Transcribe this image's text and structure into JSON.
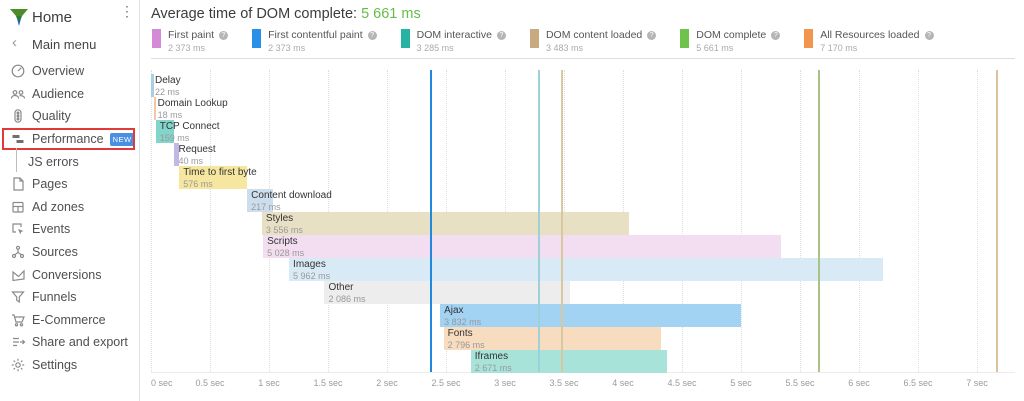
{
  "sidebar": {
    "home_label": "Home",
    "back_label": "Main menu",
    "items": [
      {
        "label": "Overview"
      },
      {
        "label": "Audience"
      },
      {
        "label": "Quality"
      },
      {
        "label": "Performance",
        "badge": "NEW",
        "highlighted": true
      },
      {
        "label": "JS errors",
        "child": true
      },
      {
        "label": "Pages"
      },
      {
        "label": "Ad zones"
      },
      {
        "label": "Events"
      },
      {
        "label": "Sources"
      },
      {
        "label": "Conversions"
      },
      {
        "label": "Funnels"
      },
      {
        "label": "E-Commerce"
      },
      {
        "label": "Share and export"
      },
      {
        "label": "Settings"
      }
    ]
  },
  "header": {
    "title_prefix": "Average time of DOM complete: ",
    "title_value": "5 661 ms"
  },
  "chart_data": {
    "type": "waterfall-timeline",
    "title": "Average time of DOM complete: 5 661 ms",
    "x_unit": "sec",
    "x_range_sec": [
      0,
      7.3
    ],
    "grid": "dotted-vertical-every-0.5s",
    "legend_position": "top",
    "x_ticks": [
      "0 sec",
      "0.5 sec",
      "1 sec",
      "1.5 sec",
      "2 sec",
      "2.5 sec",
      "3 sec",
      "3.5 sec",
      "4 sec",
      "4.5 sec",
      "5 sec",
      "5.5 sec",
      "6 sec",
      "6.5 sec",
      "7 sec"
    ],
    "legend": [
      {
        "label": "First paint",
        "value": "2 373 ms",
        "time_ms": 2373,
        "color": "#d58ad8"
      },
      {
        "label": "First contentful paint",
        "value": "2 373 ms",
        "time_ms": 2373,
        "color": "#2b90e8"
      },
      {
        "label": "DOM interactive",
        "value": "3 285 ms",
        "time_ms": 3285,
        "color": "#26b3a4"
      },
      {
        "label": "DOM content loaded",
        "value": "3 483 ms",
        "time_ms": 3483,
        "color": "#c7ab7e"
      },
      {
        "label": "DOM complete",
        "value": "5 661 ms",
        "time_ms": 5661,
        "color": "#6fc24c"
      },
      {
        "label": "All Resources loaded",
        "value": "7 170 ms",
        "time_ms": 7170,
        "color": "#f2954f"
      }
    ],
    "markers": [
      {
        "name": "first-paint",
        "time_s": 2.373,
        "color": "#da9fe0"
      },
      {
        "name": "first-contentful-paint",
        "time_s": 2.373,
        "color": "#2188e0"
      },
      {
        "name": "dom-interactive",
        "time_s": 3.285,
        "color": "#9fd0d8"
      },
      {
        "name": "dom-content-loaded",
        "time_s": 3.483,
        "color": "#d9c79e"
      },
      {
        "name": "dom-complete",
        "time_s": 5.661,
        "color": "#a8c287"
      },
      {
        "name": "all-resources-loaded",
        "time_s": 7.17,
        "color": "#ddc19e"
      }
    ],
    "bars": [
      {
        "label": "Delay",
        "value": "22 ms",
        "duration_ms": 22,
        "start_s": 0.0,
        "end_s": 0.022,
        "color": "#a9cfe5"
      },
      {
        "label": "Domain Lookup",
        "value": "18 ms",
        "duration_ms": 18,
        "start_s": 0.022,
        "end_s": 0.04,
        "color": "#f3c6a5"
      },
      {
        "label": "TCP Connect",
        "value": "159 ms",
        "duration_ms": 159,
        "start_s": 0.04,
        "end_s": 0.199,
        "color": "#83d4cb"
      },
      {
        "label": "Request",
        "value": "40 ms",
        "duration_ms": 40,
        "start_s": 0.199,
        "end_s": 0.239,
        "color": "#c3b7e6"
      },
      {
        "label": "Time to first byte",
        "value": "576 ms",
        "duration_ms": 576,
        "start_s": 0.239,
        "end_s": 0.815,
        "color": "#f6e7a0"
      },
      {
        "label": "Content download",
        "value": "217 ms",
        "duration_ms": 217,
        "start_s": 0.815,
        "end_s": 1.032,
        "color": "#ccdeed"
      },
      {
        "label": "Styles",
        "value": "3 556 ms",
        "duration_ms": 3556,
        "start_s": 0.94,
        "end_s": 4.05,
        "color": "#e8e0c5"
      },
      {
        "label": "Scripts",
        "value": "5 028 ms",
        "duration_ms": 5028,
        "start_s": 0.95,
        "end_s": 5.34,
        "color": "#f3def1"
      },
      {
        "label": "Images",
        "value": "5 962 ms",
        "duration_ms": 5962,
        "start_s": 1.17,
        "end_s": 6.2,
        "color": "#d9eaf7"
      },
      {
        "label": "Other",
        "value": "2 086 ms",
        "duration_ms": 2086,
        "start_s": 1.47,
        "end_s": 3.55,
        "color": "#ededed"
      },
      {
        "label": "Ajax",
        "value": "3 832 ms",
        "duration_ms": 3832,
        "start_s": 2.45,
        "end_s": 5.0,
        "color": "#a3d3f2"
      },
      {
        "label": "Fonts",
        "value": "2 796 ms",
        "duration_ms": 2796,
        "start_s": 2.48,
        "end_s": 4.32,
        "color": "#f8dcc0"
      },
      {
        "label": "Iframes",
        "value": "2 671 ms",
        "duration_ms": 2671,
        "start_s": 2.71,
        "end_s": 4.37,
        "color": "#a8e3da"
      }
    ]
  }
}
